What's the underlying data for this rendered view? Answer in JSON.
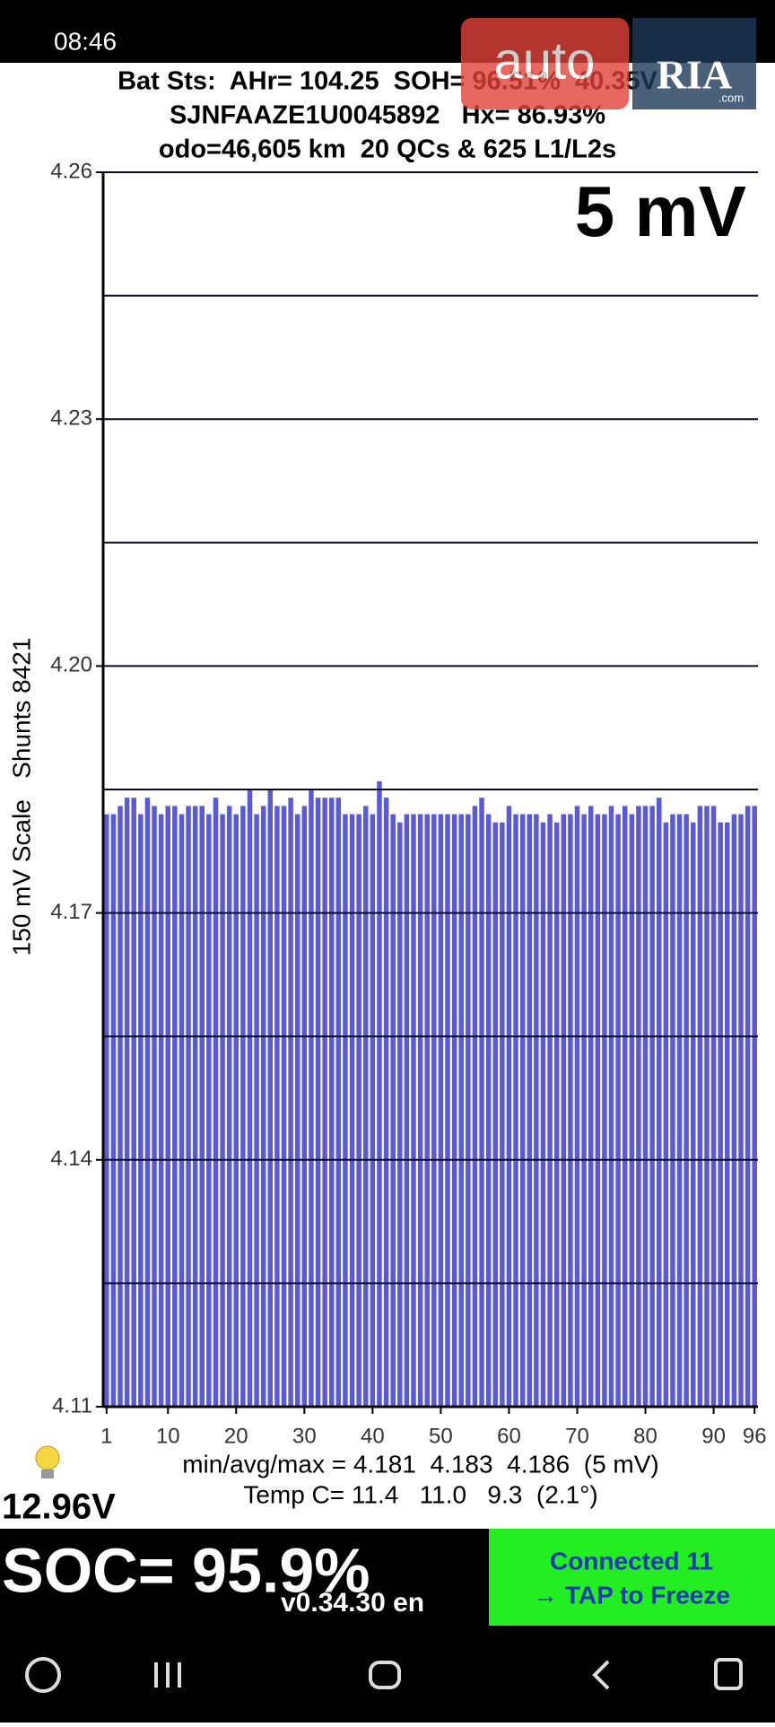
{
  "status_bar": {
    "time": "08:46"
  },
  "header": {
    "lines": [
      "Bat Sts:  AHr= 104.25  SOH= 96.51%  40.35V",
      "SJNFAAZE1U0045892   Hx= 86.93%",
      "odo=46,605 km  20 QCs & 625 L1/L2s"
    ]
  },
  "watermark": {
    "brand": "auto",
    "brand2": "RIA",
    "domain": ".com"
  },
  "chart_data": {
    "type": "bar",
    "y_label": "150 mV Scale   Shunts 8421",
    "x": [
      1,
      2,
      3,
      4,
      5,
      6,
      7,
      8,
      9,
      10,
      11,
      12,
      13,
      14,
      15,
      16,
      17,
      18,
      19,
      20,
      21,
      22,
      23,
      24,
      25,
      26,
      27,
      28,
      29,
      30,
      31,
      32,
      33,
      34,
      35,
      36,
      37,
      38,
      39,
      40,
      41,
      42,
      43,
      44,
      45,
      46,
      47,
      48,
      49,
      50,
      51,
      52,
      53,
      54,
      55,
      56,
      57,
      58,
      59,
      60,
      61,
      62,
      63,
      64,
      65,
      66,
      67,
      68,
      69,
      70,
      71,
      72,
      73,
      74,
      75,
      76,
      77,
      78,
      79,
      80,
      81,
      82,
      83,
      84,
      85,
      86,
      87,
      88,
      89,
      90,
      91,
      92,
      93,
      94,
      95,
      96
    ],
    "values": [
      4.182,
      4.182,
      4.183,
      4.184,
      4.184,
      4.182,
      4.184,
      4.183,
      4.182,
      4.183,
      4.183,
      4.182,
      4.183,
      4.183,
      4.183,
      4.182,
      4.184,
      4.182,
      4.183,
      4.182,
      4.183,
      4.185,
      4.182,
      4.183,
      4.185,
      4.183,
      4.183,
      4.184,
      4.182,
      4.183,
      4.185,
      4.184,
      4.184,
      4.184,
      4.184,
      4.182,
      4.182,
      4.182,
      4.183,
      4.182,
      4.186,
      4.184,
      4.182,
      4.181,
      4.182,
      4.182,
      4.182,
      4.182,
      4.182,
      4.182,
      4.182,
      4.182,
      4.182,
      4.182,
      4.183,
      4.184,
      4.182,
      4.181,
      4.181,
      4.183,
      4.182,
      4.182,
      4.182,
      4.182,
      4.181,
      4.182,
      4.181,
      4.182,
      4.182,
      4.183,
      4.182,
      4.183,
      4.182,
      4.182,
      4.183,
      4.182,
      4.183,
      4.182,
      4.183,
      4.183,
      4.183,
      4.184,
      4.181,
      4.182,
      4.182,
      4.182,
      4.181,
      4.183,
      4.183,
      4.183,
      4.181,
      4.181,
      4.182,
      4.182,
      4.183,
      4.183
    ],
    "color": "#5a5ad8",
    "xlim": [
      0.5,
      96.5
    ],
    "xticks": [
      1,
      10,
      20,
      30,
      40,
      50,
      60,
      70,
      80,
      90,
      96
    ],
    "ylim": [
      4.11,
      4.26
    ],
    "yticks": [
      4.11,
      4.14,
      4.17,
      {
        "value": 4.2,
        "label": "4.20"
      },
      4.23,
      4.26
    ],
    "grid_lines": [
      4.125,
      4.155,
      4.185,
      4.215,
      4.245
    ],
    "grid": true,
    "scale_label": "5 mV"
  },
  "footer": {
    "stats": "min/avg/max = 4.181  4.183  4.186  (5 mV)",
    "temp": "Temp C= 11.4   11.0   9.3  (2.1°)",
    "voltage": "12.96V",
    "soc": "SOC= 95.9%",
    "version": "v0.34.30 en"
  },
  "button": {
    "lines": [
      "Connected 11",
      "→ TAP to Freeze"
    ]
  }
}
